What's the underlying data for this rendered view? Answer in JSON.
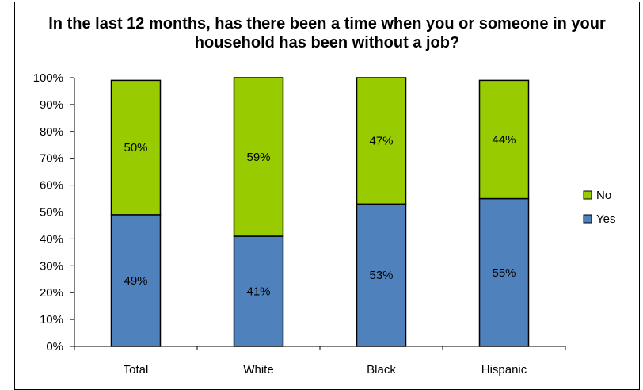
{
  "chart_data": {
    "type": "bar",
    "stacked": true,
    "percent_stacked": true,
    "title": [
      "In the last 12 months, has there been a time when you or someone in your",
      "household has been without a job?"
    ],
    "categories": [
      "Total",
      "White",
      "Black",
      "Hispanic"
    ],
    "series": [
      {
        "name": "Yes",
        "values": [
          49,
          41,
          53,
          55
        ],
        "labels": [
          "49%",
          "41%",
          "53%",
          "55%"
        ],
        "color": "#4f81bd"
      },
      {
        "name": "No",
        "values": [
          50,
          59,
          47,
          44
        ],
        "labels": [
          "50%",
          "59%",
          "47%",
          "44%"
        ],
        "color": "#99cc00"
      }
    ],
    "ylim": [
      0,
      100
    ],
    "yticks": [
      0,
      10,
      20,
      30,
      40,
      50,
      60,
      70,
      80,
      90,
      100
    ],
    "ytick_labels": [
      "0%",
      "10%",
      "20%",
      "30%",
      "40%",
      "50%",
      "60%",
      "70%",
      "80%",
      "90%",
      "100%"
    ],
    "grid": false,
    "legend": {
      "placement": "right",
      "entries": [
        "No",
        "Yes"
      ]
    }
  }
}
